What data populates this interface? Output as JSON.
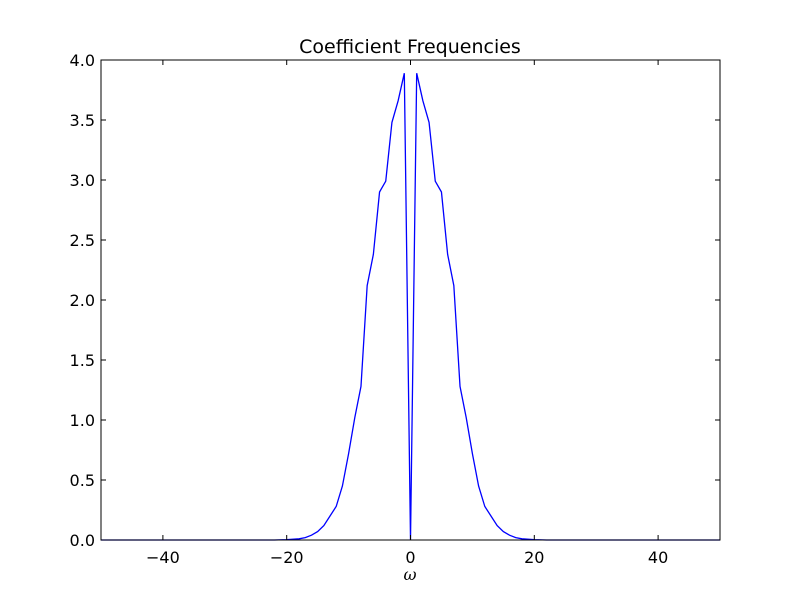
{
  "chart_data": {
    "type": "line",
    "title": "Coefficient Frequencies",
    "xlabel": "ω",
    "ylabel": "",
    "xlim": [
      -50,
      50
    ],
    "ylim": [
      0,
      4
    ],
    "xticks": [
      -40,
      -20,
      0,
      20,
      40
    ],
    "xtick_labels": [
      "−40",
      "−20",
      "0",
      "20",
      "40"
    ],
    "yticks": [
      0,
      0.5,
      1.0,
      1.5,
      2.0,
      2.5,
      3.0,
      3.5,
      4.0
    ],
    "ytick_labels": [
      "0.0",
      "0.5",
      "1.0",
      "1.5",
      "2.0",
      "2.5",
      "3.0",
      "3.5",
      "4.0"
    ],
    "grid": false,
    "line_color": "#0000ff",
    "series": [
      {
        "x": [
          -50,
          -22,
          -20,
          -18,
          -17,
          -16,
          -15,
          -14,
          -13,
          -12,
          -11,
          -10,
          -9,
          -8,
          -7,
          -6,
          -5,
          -4,
          -3,
          -2,
          -1,
          0,
          1,
          2,
          3,
          4,
          5,
          6,
          7,
          8,
          9,
          10,
          11,
          12,
          13,
          14,
          15,
          16,
          17,
          18,
          20,
          22,
          50
        ],
        "y": [
          0,
          0,
          0.003,
          0.01,
          0.02,
          0.04,
          0.07,
          0.12,
          0.2,
          0.28,
          0.45,
          0.72,
          1.02,
          1.28,
          2.12,
          2.38,
          2.9,
          2.99,
          3.48,
          3.66,
          3.89,
          0.0,
          3.89,
          3.66,
          3.48,
          2.99,
          2.9,
          2.38,
          2.12,
          1.28,
          1.02,
          0.72,
          0.45,
          0.28,
          0.2,
          0.12,
          0.07,
          0.04,
          0.02,
          0.01,
          0.003,
          0,
          0
        ]
      }
    ]
  }
}
